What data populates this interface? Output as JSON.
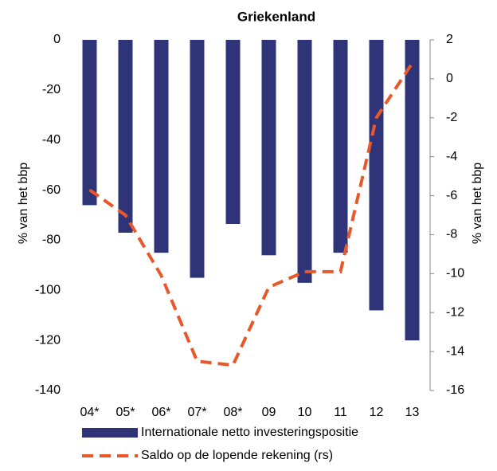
{
  "chart_data": {
    "type": "bar",
    "title": "Griekenland",
    "categories": [
      "04*",
      "05*",
      "06*",
      "07*",
      "08*",
      "09",
      "10",
      "11",
      "12",
      "13"
    ],
    "series": [
      {
        "name": "Internationale netto investeringspositie",
        "color": "#2e3477",
        "type": "bar",
        "values": [
          -66,
          -77,
          -85,
          -95,
          -73.5,
          -86,
          -97,
          -85,
          -108,
          -120
        ]
      },
      {
        "name": "Saldo op de lopende rekening (rs)",
        "color": "#e8582a",
        "type": "line",
        "axis": "y2",
        "values": [
          -5.7,
          -7.0,
          -10.1,
          -14.5,
          -14.7,
          -10.7,
          -9.9,
          -9.9,
          -2.0,
          0.8
        ]
      }
    ],
    "ylabel": "% van het bbp",
    "y2label": "% van het bbp",
    "ylim": [
      -140,
      0
    ],
    "yticks": [
      0,
      -20,
      -40,
      -60,
      -80,
      -100,
      -120,
      -140
    ],
    "y2lim": [
      -16,
      2
    ],
    "y2ticks": [
      2,
      0,
      -2,
      -4,
      -6,
      -8,
      -10,
      -12,
      -14,
      -16
    ],
    "grid": false,
    "legend": "bottom"
  }
}
